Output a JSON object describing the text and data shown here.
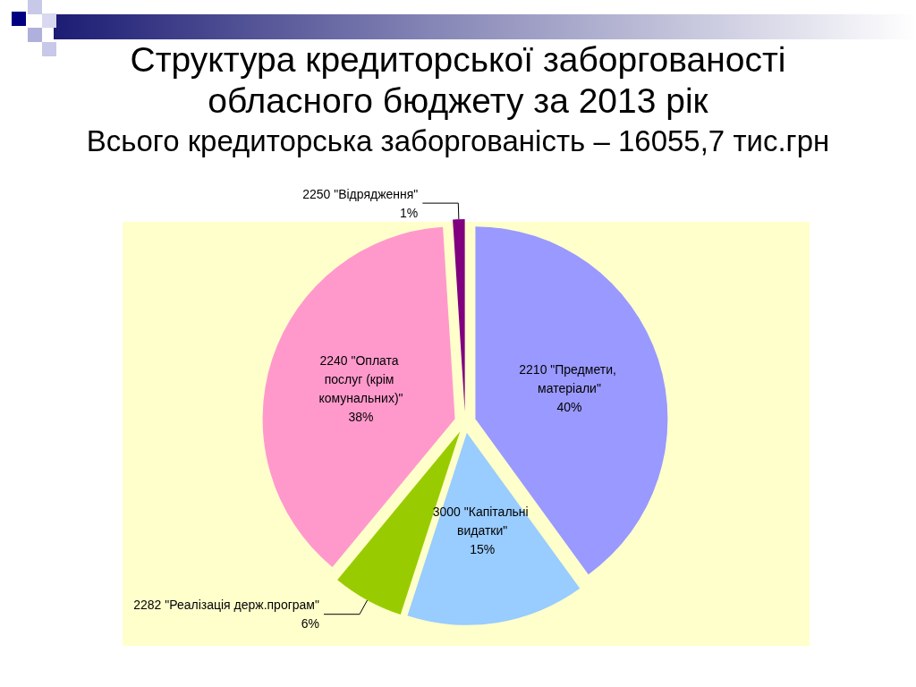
{
  "chart_data": {
    "type": "pie",
    "title": "Структура кредиторської заборгованості обласного бюджету за 2013 рік",
    "subtitle": "Всього кредиторська заборгованість – 16055,7 тис.грн",
    "categories": [
      "2210 \"Предмети, матеріали\"",
      "3000 \"Капітальні видатки\"",
      "2282 \"Реалізація держ.програм\"",
      "2240 \"Оплата послуг (крім комунальних)\"",
      "2250 \"Відрядження\""
    ],
    "values": [
      40,
      15,
      6,
      38,
      1
    ],
    "value_labels": [
      "40%",
      "15%",
      "6%",
      "38%",
      "1%"
    ],
    "colors": [
      "#9999ff",
      "#99ccff",
      "#99cc00",
      "#ff99cc",
      "#800080"
    ]
  }
}
